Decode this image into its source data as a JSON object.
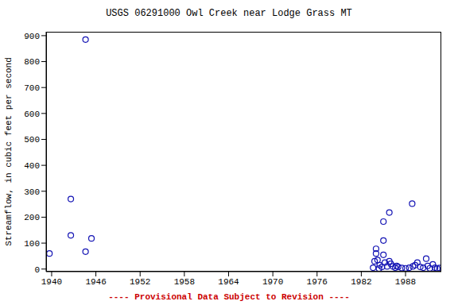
{
  "chart_data": {
    "type": "scatter",
    "title": "USGS 06291000 Owl Creek near Lodge Grass MT",
    "x_label": "",
    "y_label": "Streamflow, in cubic feet per second",
    "annotation": "---- Provisional Data Subject to Revision ----",
    "x": [
      1939.7,
      1942.6,
      1942.6,
      1944.6,
      1944.6,
      1945.4,
      1983.6,
      1983.8,
      1984.0,
      1984.0,
      1984.2,
      1984.4,
      1984.5,
      1984.8,
      1985.0,
      1985.0,
      1985.0,
      1985.2,
      1985.5,
      1985.8,
      1985.8,
      1986.0,
      1986.3,
      1986.6,
      1986.8,
      1987.0,
      1987.5,
      1988.0,
      1988.5,
      1988.9,
      1989.0,
      1989.3,
      1989.6,
      1990.0,
      1990.4,
      1990.8,
      1991.0,
      1991.3,
      1991.7,
      1992.0,
      1992.3,
      1992.6
    ],
    "values": [
      60,
      270,
      130,
      885,
      67,
      118,
      5,
      30,
      78,
      60,
      35,
      2,
      15,
      8,
      110,
      183,
      55,
      25,
      10,
      218,
      30,
      20,
      10,
      5,
      12,
      8,
      4,
      3,
      5,
      252,
      10,
      15,
      25,
      8,
      5,
      40,
      12,
      3,
      18,
      5,
      2,
      4
    ],
    "color": "#1414b4",
    "marker": "open_circle",
    "xlim": [
      1939.25,
      1992.85
    ],
    "xticks": [
      1940,
      1946,
      1952,
      1958,
      1964,
      1970,
      1976,
      1982,
      1988
    ],
    "ylim": [
      -10,
      915
    ],
    "yticks": [
      0,
      100,
      200,
      300,
      400,
      500,
      600,
      700,
      800,
      900
    ],
    "grid": false
  }
}
